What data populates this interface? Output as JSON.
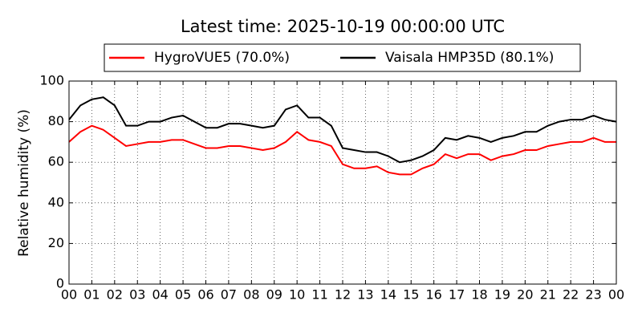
{
  "chart_data": {
    "type": "line",
    "title": "Latest time: 2025-10-19 00:00:00 UTC",
    "ylabel": "Relative humidity (%)",
    "x": [
      0,
      0.5,
      1,
      1.5,
      2,
      2.5,
      3,
      3.5,
      4,
      4.5,
      5,
      5.5,
      6,
      6.5,
      7,
      7.5,
      8,
      8.5,
      9,
      9.5,
      10,
      10.5,
      11,
      11.5,
      12,
      12.5,
      13,
      13.5,
      14,
      14.5,
      15,
      15.5,
      16,
      16.5,
      17,
      17.5,
      18,
      18.5,
      19,
      19.5,
      20,
      20.5,
      21,
      21.5,
      22,
      22.5,
      23,
      23.5,
      24
    ],
    "series": [
      {
        "name": "HygroVUE5 (70.0%)",
        "color": "#ff0000",
        "values": [
          70,
          75,
          78,
          76,
          72,
          68,
          69,
          70,
          70,
          71,
          71,
          69,
          67,
          67,
          68,
          68,
          67,
          66,
          67,
          70,
          75,
          71,
          70,
          68,
          59,
          57,
          57,
          58,
          55,
          54,
          54,
          57,
          59,
          64,
          62,
          64,
          64,
          61,
          63,
          64,
          66,
          66,
          68,
          69,
          70,
          70,
          72,
          70,
          70
        ]
      },
      {
        "name": "Vaisala HMP35D (80.1%)",
        "color": "#000000",
        "values": [
          81,
          88,
          91,
          92,
          88,
          78,
          78,
          80,
          80,
          82,
          83,
          80,
          77,
          77,
          79,
          79,
          78,
          77,
          78,
          86,
          88,
          82,
          82,
          78,
          67,
          66,
          65,
          65,
          63,
          60,
          61,
          63,
          66,
          72,
          71,
          73,
          72,
          70,
          72,
          73,
          75,
          75,
          78,
          80,
          81,
          81,
          83,
          81,
          80
        ]
      }
    ],
    "xlim": [
      0,
      24
    ],
    "xticks": [
      {
        "value": 0,
        "label": "00"
      },
      {
        "value": 1,
        "label": "01"
      },
      {
        "value": 2,
        "label": "02"
      },
      {
        "value": 3,
        "label": "03"
      },
      {
        "value": 4,
        "label": "04"
      },
      {
        "value": 5,
        "label": "05"
      },
      {
        "value": 6,
        "label": "06"
      },
      {
        "value": 7,
        "label": "07"
      },
      {
        "value": 8,
        "label": "08"
      },
      {
        "value": 9,
        "label": "09"
      },
      {
        "value": 10,
        "label": "10"
      },
      {
        "value": 11,
        "label": "11"
      },
      {
        "value": 12,
        "label": "12"
      },
      {
        "value": 13,
        "label": "13"
      },
      {
        "value": 14,
        "label": "14"
      },
      {
        "value": 15,
        "label": "15"
      },
      {
        "value": 16,
        "label": "16"
      },
      {
        "value": 17,
        "label": "17"
      },
      {
        "value": 18,
        "label": "18"
      },
      {
        "value": 19,
        "label": "19"
      },
      {
        "value": 20,
        "label": "20"
      },
      {
        "value": 21,
        "label": "21"
      },
      {
        "value": 22,
        "label": "22"
      },
      {
        "value": 23,
        "label": "23"
      },
      {
        "value": 24,
        "label": "00"
      }
    ],
    "ylim": [
      0,
      100
    ],
    "yticks": [
      0,
      20,
      40,
      60,
      80,
      100
    ],
    "grid": true,
    "legend": "top"
  }
}
